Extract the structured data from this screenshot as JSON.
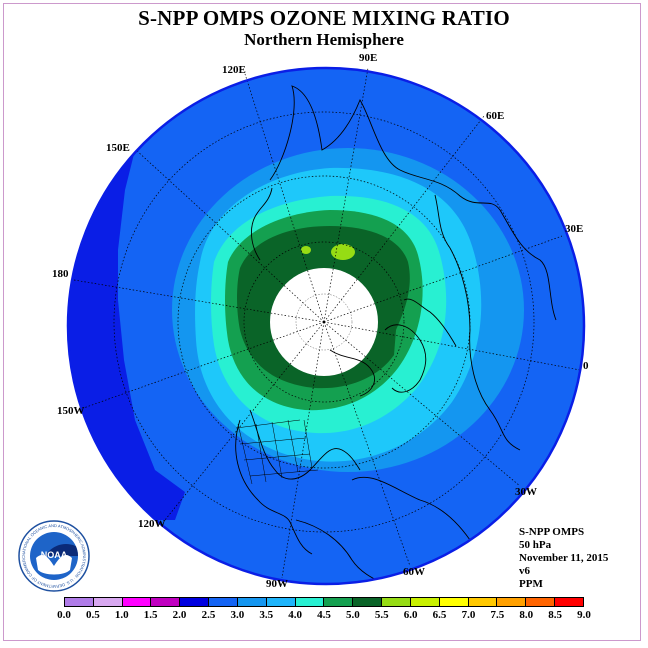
{
  "title": "S-NPP OMPS OZONE MIXING RATIO",
  "subtitle": "Northern Hemisphere",
  "longitude_labels": {
    "e90": "90E",
    "e120": "120E",
    "e60": "60E",
    "e150": "150E",
    "e30": "30E",
    "lon180": "180",
    "lon0": "0",
    "w150": "150W",
    "w30": "30W",
    "w120": "120W",
    "w60": "60W",
    "w90": "90W"
  },
  "info": {
    "instrument": "S-NPP OMPS",
    "level": "50 hPa",
    "date": "November 11, 2015",
    "version": "v6",
    "units": "PPM"
  },
  "logo": {
    "text": "NOAA",
    "ring_text": "NATIONAL OCEANIC AND ATMOSPHERIC ADMINISTRATION · U.S. DEPARTMENT OF COMMERCE"
  },
  "colorbar": {
    "ticks": [
      "0.0",
      "0.5",
      "1.0",
      "1.5",
      "2.0",
      "2.5",
      "3.0",
      "3.5",
      "4.0",
      "4.5",
      "5.0",
      "5.5",
      "6.0",
      "6.5",
      "7.0",
      "7.5",
      "8.0",
      "8.5",
      "9.0"
    ],
    "colors": [
      "#b07ce8",
      "#d8a8f0",
      "#ff00ff",
      "#c000c0",
      "#0000e0",
      "#1464f4",
      "#1496f0",
      "#1eb4fa",
      "#28f0d2",
      "#14a050",
      "#0a6428",
      "#96dc14",
      "#c8f000",
      "#ffff00",
      "#ffc800",
      "#ffa000",
      "#ff6400",
      "#ff0000",
      "#7c4e32"
    ]
  },
  "map_colors": {
    "band_20": "#0a1ee6",
    "band_25": "#1464f4",
    "band_30": "#1496f0",
    "band_35": "#1ec8fa",
    "band_40": "#28f0d2",
    "band_45": "#14a050",
    "band_50": "#0a6428",
    "band_55": "#96dc14",
    "polar_night": "#ffffff",
    "border": "#0a1ee6"
  }
}
